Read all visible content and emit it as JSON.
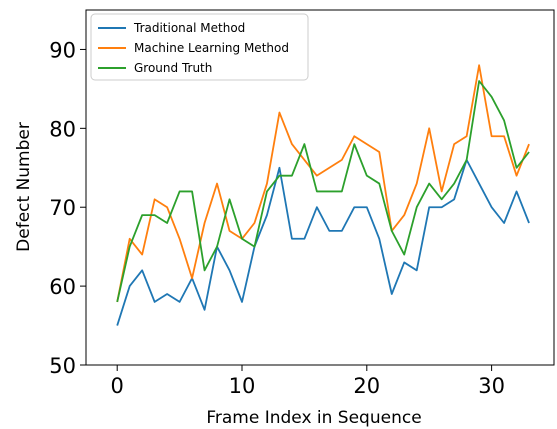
{
  "chart_data": {
    "type": "line",
    "xlabel": "Frame Index in Sequence",
    "ylabel": "Defect Number",
    "xlim": [
      -2.5,
      35
    ],
    "ylim": [
      50,
      95
    ],
    "x_ticks": [
      0,
      10,
      20,
      30
    ],
    "y_ticks": [
      50,
      60,
      70,
      80,
      90
    ],
    "x_tick_labels": [
      "0",
      "10",
      "20",
      "30"
    ],
    "y_tick_labels": [
      "50",
      "60",
      "70",
      "80",
      "90"
    ],
    "grid": false,
    "legend_position": "top-left",
    "x": [
      0,
      1,
      2,
      3,
      4,
      5,
      6,
      7,
      8,
      9,
      10,
      11,
      12,
      13,
      14,
      15,
      16,
      17,
      18,
      19,
      20,
      21,
      22,
      23,
      24,
      25,
      26,
      27,
      28,
      29,
      30,
      31,
      32,
      33
    ],
    "series": [
      {
        "name": "Traditional Method",
        "color": "#1f77b4",
        "values": [
          55,
          60,
          62,
          58,
          59,
          58,
          61,
          57,
          65,
          62,
          58,
          65,
          69,
          75,
          66,
          66,
          70,
          67,
          67,
          70,
          70,
          66,
          59,
          63,
          62,
          70,
          70,
          71,
          76,
          73,
          70,
          68,
          72,
          68
        ]
      },
      {
        "name": "Machine Learning Method",
        "color": "#ff7f0e",
        "values": [
          58,
          66,
          64,
          71,
          70,
          66,
          61,
          68,
          73,
          67,
          66,
          68,
          73,
          82,
          78,
          76,
          74,
          75,
          76,
          79,
          78,
          77,
          67,
          69,
          73,
          80,
          72,
          78,
          79,
          88,
          79,
          79,
          74,
          78
        ]
      },
      {
        "name": "Ground Truth",
        "color": "#2ca02c",
        "values": [
          58,
          65,
          69,
          69,
          68,
          72,
          72,
          62,
          65,
          71,
          66,
          65,
          72,
          74,
          74,
          78,
          72,
          72,
          72,
          78,
          74,
          73,
          67,
          64,
          70,
          73,
          71,
          73,
          76,
          86,
          84,
          81,
          75,
          77
        ]
      }
    ]
  }
}
